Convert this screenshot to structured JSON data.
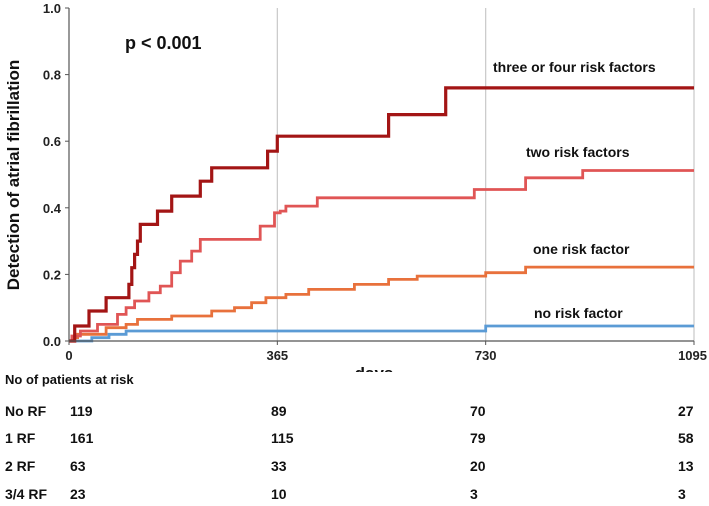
{
  "chart_data": {
    "type": "line",
    "step": true,
    "title": "",
    "annotation": "p < 0.001",
    "xlabel": "days",
    "ylabel": "Detection of atrial fibrillation",
    "xlim": [
      0,
      1095
    ],
    "ylim": [
      0,
      1.0
    ],
    "x_ticks": [
      0,
      365,
      730,
      1095
    ],
    "x_tick_labels": [
      "0",
      "365",
      "730",
      "1095"
    ],
    "y_ticks": [
      0,
      0.2,
      0.4,
      0.6,
      0.8,
      1.0
    ],
    "y_tick_labels": [
      "0.0",
      "0.2",
      "0.4",
      "0.6",
      "0.8",
      "1.0"
    ],
    "grid": "vertical",
    "series": [
      {
        "name": "no risk factor",
        "color": "#5b9bd5",
        "points": [
          [
            0,
            0
          ],
          [
            40,
            0
          ],
          [
            40,
            0.01
          ],
          [
            70,
            0.01
          ],
          [
            70,
            0.02
          ],
          [
            100,
            0.02
          ],
          [
            100,
            0.03
          ],
          [
            730,
            0.03
          ],
          [
            730,
            0.045
          ],
          [
            1095,
            0.045
          ]
        ]
      },
      {
        "name": "one risk factor",
        "color": "#e8713c",
        "points": [
          [
            0,
            0
          ],
          [
            5,
            0
          ],
          [
            5,
            0.01
          ],
          [
            15,
            0.01
          ],
          [
            15,
            0.02
          ],
          [
            65,
            0.02
          ],
          [
            65,
            0.04
          ],
          [
            100,
            0.04
          ],
          [
            100,
            0.05
          ],
          [
            120,
            0.05
          ],
          [
            120,
            0.065
          ],
          [
            180,
            0.065
          ],
          [
            180,
            0.075
          ],
          [
            250,
            0.075
          ],
          [
            250,
            0.09
          ],
          [
            290,
            0.09
          ],
          [
            290,
            0.1
          ],
          [
            320,
            0.1
          ],
          [
            320,
            0.115
          ],
          [
            345,
            0.115
          ],
          [
            345,
            0.13
          ],
          [
            380,
            0.13
          ],
          [
            380,
            0.14
          ],
          [
            420,
            0.14
          ],
          [
            420,
            0.155
          ],
          [
            500,
            0.155
          ],
          [
            500,
            0.17
          ],
          [
            560,
            0.17
          ],
          [
            560,
            0.185
          ],
          [
            610,
            0.185
          ],
          [
            610,
            0.195
          ],
          [
            730,
            0.195
          ],
          [
            730,
            0.205
          ],
          [
            800,
            0.205
          ],
          [
            800,
            0.222
          ],
          [
            1095,
            0.222
          ]
        ]
      },
      {
        "name": "two risk factors",
        "color": "#e05555",
        "points": [
          [
            0,
            0
          ],
          [
            5,
            0
          ],
          [
            5,
            0.015
          ],
          [
            20,
            0.015
          ],
          [
            20,
            0.03
          ],
          [
            50,
            0.03
          ],
          [
            50,
            0.05
          ],
          [
            85,
            0.05
          ],
          [
            85,
            0.08
          ],
          [
            100,
            0.08
          ],
          [
            100,
            0.1
          ],
          [
            115,
            0.1
          ],
          [
            115,
            0.12
          ],
          [
            140,
            0.12
          ],
          [
            140,
            0.145
          ],
          [
            160,
            0.145
          ],
          [
            160,
            0.165
          ],
          [
            180,
            0.165
          ],
          [
            180,
            0.205
          ],
          [
            195,
            0.205
          ],
          [
            195,
            0.24
          ],
          [
            215,
            0.24
          ],
          [
            215,
            0.27
          ],
          [
            230,
            0.27
          ],
          [
            230,
            0.305
          ],
          [
            335,
            0.305
          ],
          [
            335,
            0.345
          ],
          [
            360,
            0.345
          ],
          [
            360,
            0.385
          ],
          [
            370,
            0.385
          ],
          [
            370,
            0.39
          ],
          [
            380,
            0.39
          ],
          [
            380,
            0.405
          ],
          [
            435,
            0.405
          ],
          [
            435,
            0.43
          ],
          [
            710,
            0.43
          ],
          [
            710,
            0.455
          ],
          [
            800,
            0.455
          ],
          [
            800,
            0.49
          ],
          [
            900,
            0.49
          ],
          [
            900,
            0.512
          ],
          [
            1095,
            0.512
          ]
        ]
      },
      {
        "name": "three or four risk factors",
        "color": "#a31515",
        "points": [
          [
            0,
            0
          ],
          [
            10,
            0
          ],
          [
            10,
            0.045
          ],
          [
            35,
            0.045
          ],
          [
            35,
            0.09
          ],
          [
            65,
            0.09
          ],
          [
            65,
            0.13
          ],
          [
            105,
            0.13
          ],
          [
            105,
            0.17
          ],
          [
            110,
            0.17
          ],
          [
            110,
            0.22
          ],
          [
            115,
            0.22
          ],
          [
            115,
            0.26
          ],
          [
            120,
            0.26
          ],
          [
            120,
            0.3
          ],
          [
            125,
            0.3
          ],
          [
            125,
            0.35
          ],
          [
            155,
            0.35
          ],
          [
            155,
            0.39
          ],
          [
            180,
            0.39
          ],
          [
            180,
            0.435
          ],
          [
            230,
            0.435
          ],
          [
            230,
            0.48
          ],
          [
            250,
            0.48
          ],
          [
            250,
            0.52
          ],
          [
            348,
            0.52
          ],
          [
            348,
            0.57
          ],
          [
            365,
            0.57
          ],
          [
            365,
            0.615
          ],
          [
            560,
            0.615
          ],
          [
            560,
            0.68
          ],
          [
            660,
            0.68
          ],
          [
            660,
            0.76
          ],
          [
            1095,
            0.76
          ]
        ]
      }
    ],
    "risk_table": {
      "title": "No of patients at risk",
      "timepoints": [
        0,
        365,
        730,
        1095
      ],
      "rows": [
        {
          "label": "No RF",
          "values": [
            "119",
            "89",
            "70",
            "27"
          ]
        },
        {
          "label": "1 RF",
          "values": [
            "161",
            "115",
            "79",
            "58"
          ]
        },
        {
          "label": "2 RF",
          "values": [
            "63",
            "33",
            "20",
            "13"
          ]
        },
        {
          "label": "3/4 RF",
          "values": [
            "23",
            "10",
            "3",
            "3"
          ]
        }
      ]
    }
  }
}
